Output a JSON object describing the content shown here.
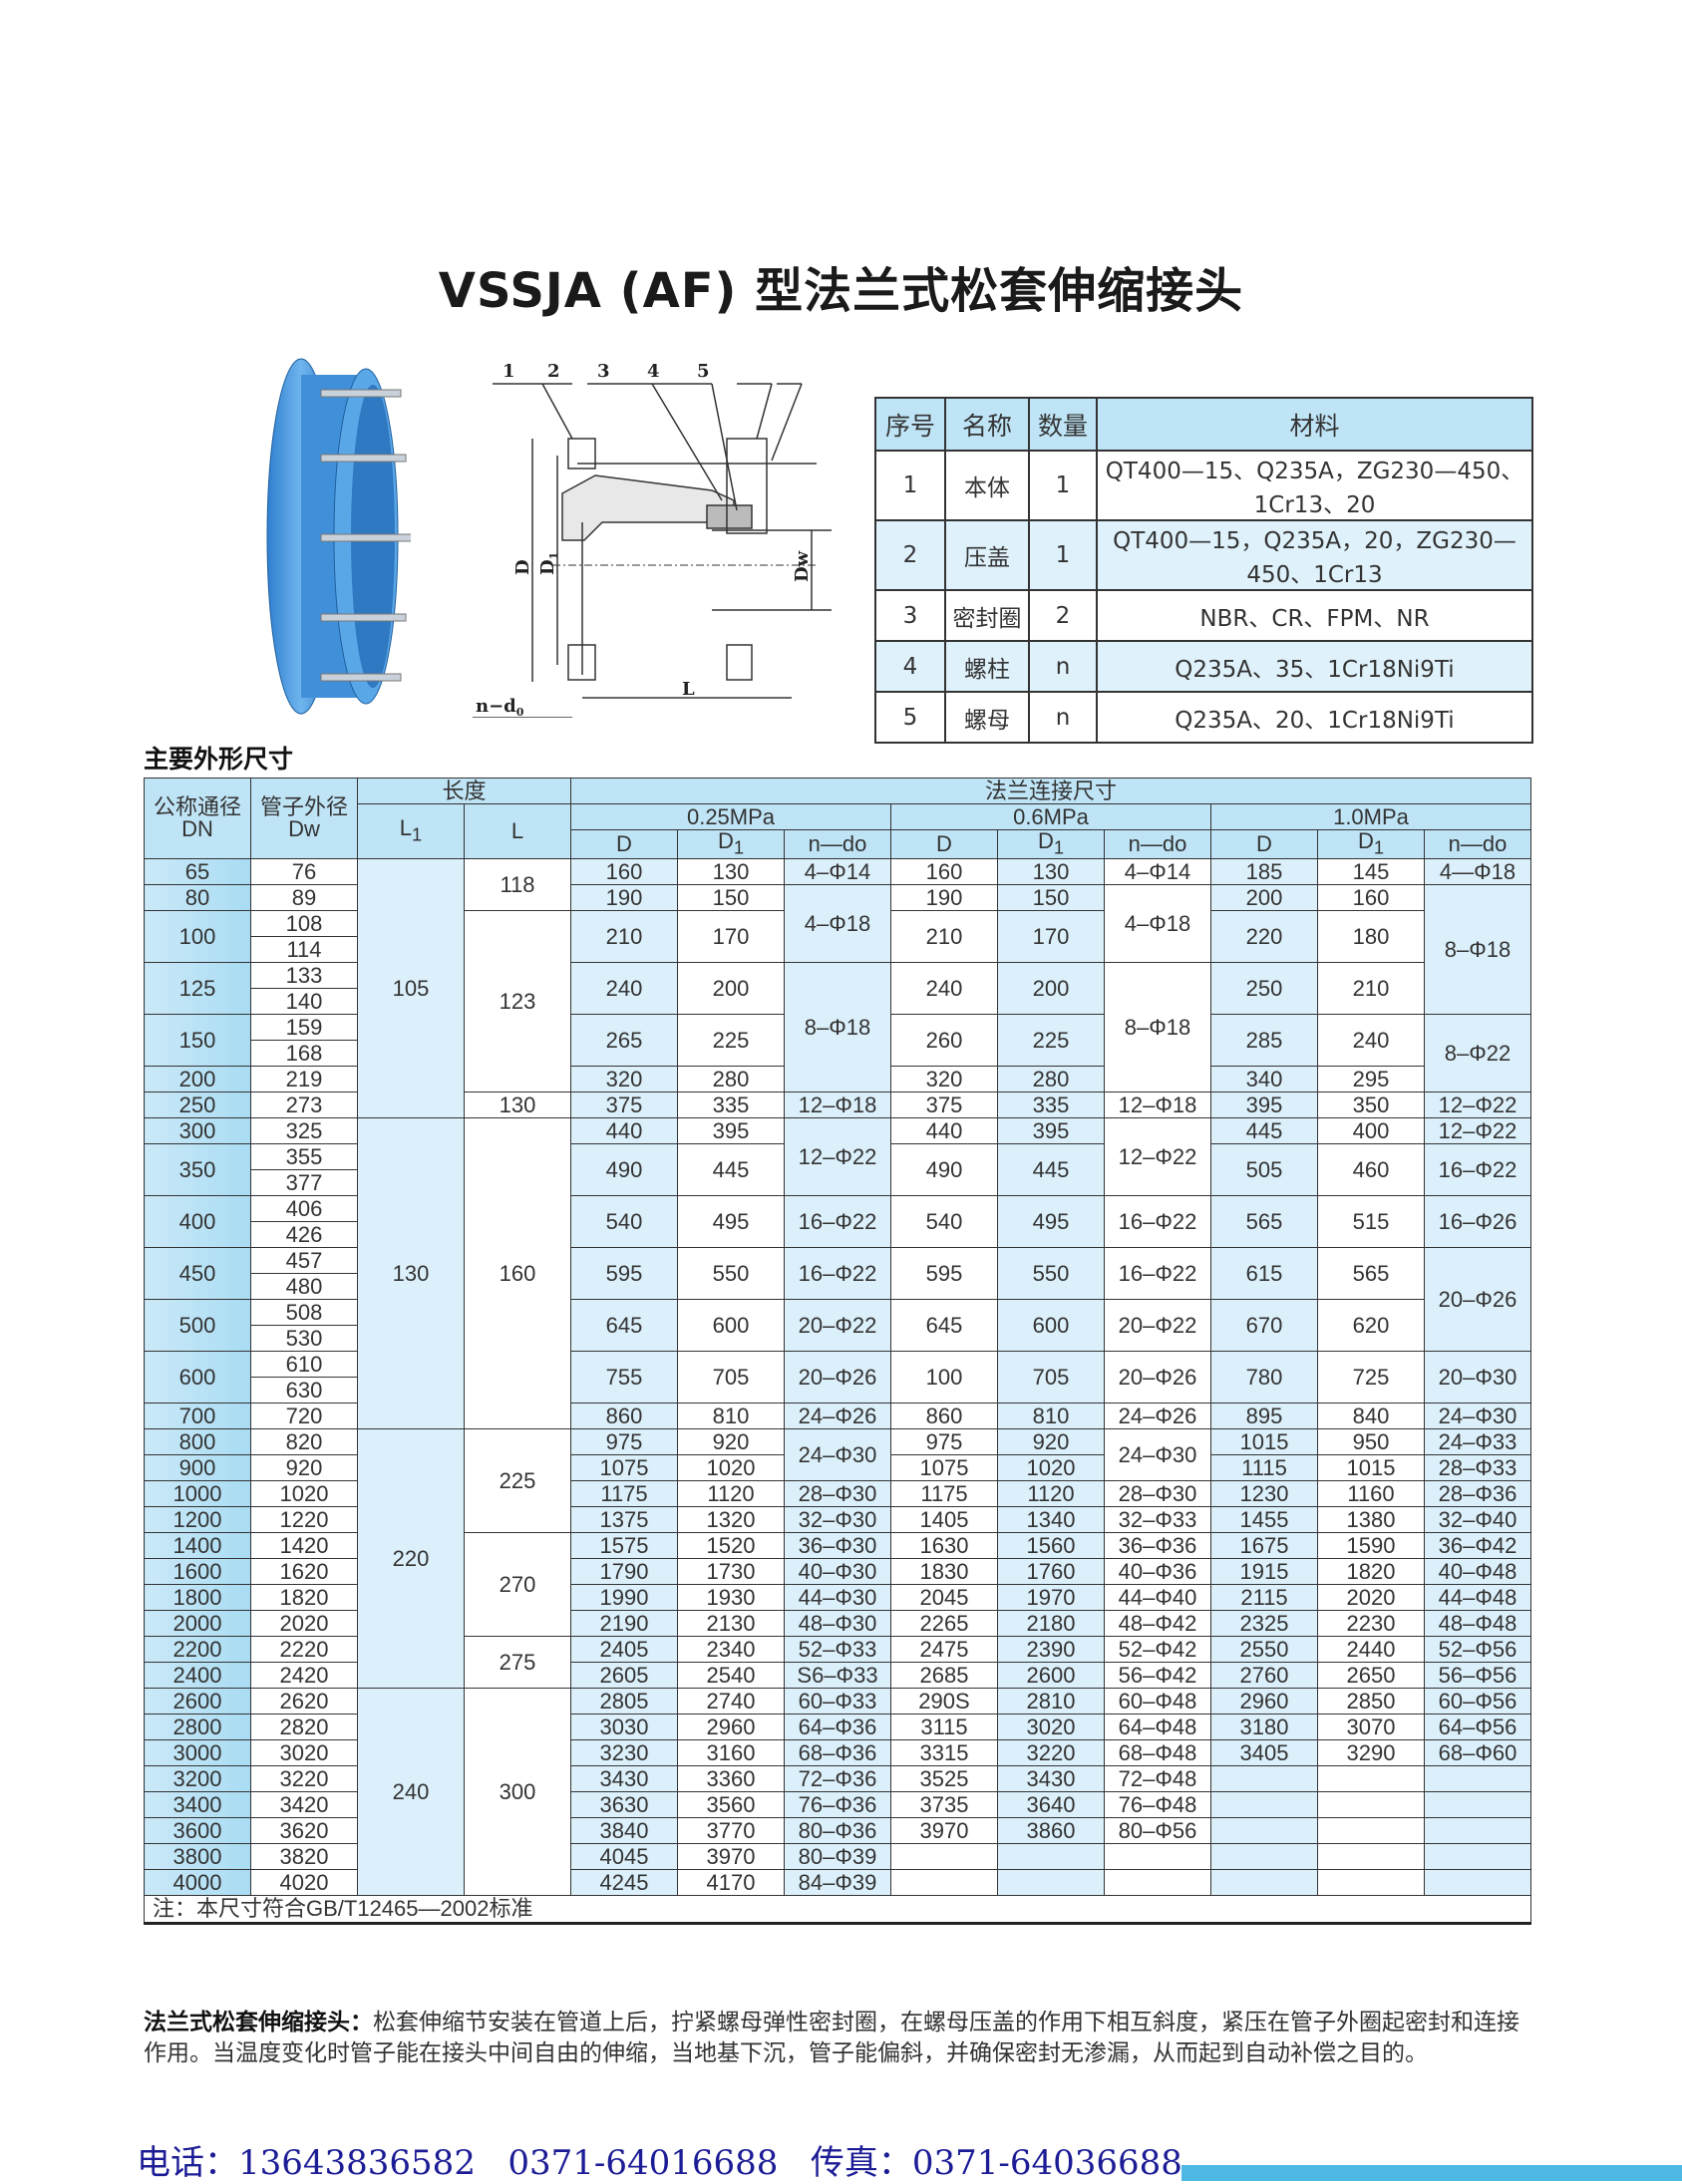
{
  "title": "VSSJA (AF) 型法兰式松套伸缩接头",
  "drawing": {
    "callouts": [
      "1",
      "2",
      "3",
      "4",
      "5"
    ],
    "labels": {
      "D": "D",
      "D1": "D",
      "D1_sub": "1",
      "Dw": "Dw",
      "L": "L",
      "nd0": "n−d",
      "nd0_sub": "0"
    }
  },
  "materials": {
    "headers": [
      "序号",
      "名称",
      "数量",
      "材料"
    ],
    "rows": [
      [
        "1",
        "本体",
        "1",
        "QT400—15、Q235A，ZG230—450、1Cr13、20"
      ],
      [
        "2",
        "压盖",
        "1",
        "QT400—15，Q235A，20，ZG230—450、1Cr13"
      ],
      [
        "3",
        "密封圈",
        "2",
        "NBR、CR、FPM、NR"
      ],
      [
        "4",
        "螺柱",
        "n",
        "Q235A、35、1Cr18Ni9Ti"
      ],
      [
        "5",
        "螺母",
        "n",
        "Q235A、20、1Cr18Ni9Ti"
      ]
    ]
  },
  "section_title": "主要外形尺寸",
  "dims": {
    "h_dn": "公称通径",
    "h_dn2": "DN",
    "h_dw": "管子外径",
    "h_dw2": "Dw",
    "h_len": "长度",
    "h_l1": "L",
    "h_l1_sub": "1",
    "h_l": "L",
    "h_flange": "法兰连接尺寸",
    "pressures": [
      "0.25MPa",
      "0.6MPa",
      "1.0MPa"
    ],
    "sub": [
      "D",
      "D1",
      "n—do"
    ],
    "rows": [
      [
        "65",
        "76",
        "105",
        "118",
        "160",
        "130",
        "4–Φ14",
        "160",
        "130",
        "4–Φ14",
        "185",
        "145",
        "4—Φ18"
      ],
      [
        "80",
        "89",
        null,
        null,
        "190",
        "150",
        "4–Φ18",
        "190",
        "150",
        "4–Φ18",
        "200",
        "160",
        "8–Φ18"
      ],
      [
        "100",
        "108",
        null,
        "123",
        "210",
        "170",
        null,
        "210",
        "170",
        null,
        "220",
        "180",
        null
      ],
      [
        null,
        "114",
        null,
        null,
        null,
        null,
        null,
        null,
        null,
        null,
        null,
        null,
        null
      ],
      [
        "125",
        "133",
        null,
        null,
        "240",
        "200",
        "8–Φ18",
        "240",
        "200",
        "8–Φ18",
        "250",
        "210",
        null
      ],
      [
        null,
        "140",
        null,
        null,
        null,
        null,
        null,
        null,
        null,
        null,
        null,
        null,
        null
      ],
      [
        "150",
        "159",
        null,
        null,
        "265",
        "225",
        null,
        "260",
        "225",
        null,
        "285",
        "240",
        "8–Φ22"
      ],
      [
        null,
        "168",
        null,
        null,
        null,
        null,
        null,
        null,
        null,
        null,
        null,
        null,
        null
      ],
      [
        "200",
        "219",
        null,
        null,
        "320",
        "280",
        null,
        "320",
        "280",
        null,
        "340",
        "295",
        null
      ],
      [
        "250",
        "273",
        null,
        "130",
        "375",
        "335",
        "12–Φ18",
        "375",
        "335",
        "12–Φ18",
        "395",
        "350",
        "12–Φ22"
      ],
      [
        "300",
        "325",
        "130",
        "160",
        "440",
        "395",
        "12–Φ22",
        "440",
        "395",
        "12–Φ22",
        "445",
        "400",
        "12–Φ22"
      ],
      [
        "350",
        "355",
        null,
        null,
        "490",
        "445",
        null,
        "490",
        "445",
        null,
        "505",
        "460",
        "16–Φ22"
      ],
      [
        null,
        "377",
        null,
        null,
        null,
        null,
        null,
        null,
        null,
        null,
        null,
        null,
        null
      ],
      [
        "400",
        "406",
        null,
        null,
        "540",
        "495",
        "16–Φ22",
        "540",
        "495",
        "16–Φ22",
        "565",
        "515",
        "16–Φ26"
      ],
      [
        null,
        "426",
        null,
        null,
        null,
        null,
        null,
        null,
        null,
        null,
        null,
        null,
        null
      ],
      [
        "450",
        "457",
        null,
        null,
        "595",
        "550",
        "16–Φ22",
        "595",
        "550",
        "16–Φ22",
        "615",
        "565",
        "20–Φ26"
      ],
      [
        null,
        "480",
        null,
        null,
        null,
        null,
        null,
        null,
        null,
        null,
        null,
        null,
        null
      ],
      [
        "500",
        "508",
        null,
        null,
        "645",
        "600",
        "20–Φ22",
        "645",
        "600",
        "20–Φ22",
        "670",
        "620",
        null
      ],
      [
        null,
        "530",
        null,
        null,
        null,
        null,
        null,
        null,
        null,
        null,
        null,
        null,
        null
      ],
      [
        "600",
        "610",
        null,
        null,
        "755",
        "705",
        "20–Φ26",
        "100",
        "705",
        "20–Φ26",
        "780",
        "725",
        "20–Φ30"
      ],
      [
        null,
        "630",
        null,
        null,
        null,
        null,
        null,
        null,
        null,
        null,
        null,
        null,
        null
      ],
      [
        "700",
        "720",
        null,
        null,
        "860",
        "810",
        "24–Φ26",
        "860",
        "810",
        "24–Φ26",
        "895",
        "840",
        "24–Φ30"
      ],
      [
        "800",
        "820",
        "220",
        "225",
        "975",
        "920",
        "24–Φ30",
        "975",
        "920",
        "24–Φ30",
        "1015",
        "950",
        "24–Φ33"
      ],
      [
        "900",
        "920",
        null,
        null,
        "1075",
        "1020",
        null,
        "1075",
        "1020",
        null,
        "1115",
        "1015",
        "28–Φ33"
      ],
      [
        "1000",
        "1020",
        null,
        null,
        "1175",
        "1120",
        "28–Φ30",
        "1175",
        "1120",
        "28–Φ30",
        "1230",
        "1160",
        "28–Φ36"
      ],
      [
        "1200",
        "1220",
        null,
        null,
        "1375",
        "1320",
        "32–Φ30",
        "1405",
        "1340",
        "32–Φ33",
        "1455",
        "1380",
        "32–Φ40"
      ],
      [
        "1400",
        "1420",
        null,
        "270",
        "1575",
        "1520",
        "36–Φ30",
        "1630",
        "1560",
        "36–Φ36",
        "1675",
        "1590",
        "36–Φ42"
      ],
      [
        "1600",
        "1620",
        null,
        null,
        "1790",
        "1730",
        "40–Φ30",
        "1830",
        "1760",
        "40–Φ36",
        "1915",
        "1820",
        "40–Φ48"
      ],
      [
        "1800",
        "1820",
        null,
        null,
        "1990",
        "1930",
        "44–Φ30",
        "2045",
        "1970",
        "44–Φ40",
        "2115",
        "2020",
        "44–Φ48"
      ],
      [
        "2000",
        "2020",
        null,
        null,
        "2190",
        "2130",
        "48–Φ30",
        "2265",
        "2180",
        "48–Φ42",
        "2325",
        "2230",
        "48–Φ48"
      ],
      [
        "2200",
        "2220",
        null,
        "275",
        "2405",
        "2340",
        "52–Φ33",
        "2475",
        "2390",
        "52–Φ42",
        "2550",
        "2440",
        "52–Φ56"
      ],
      [
        null,
        null,
        null,
        null,
        "2605",
        "2540",
        "S6–Φ33",
        "2685",
        "2600",
        "56–Φ42",
        "2760",
        "2650",
        "56–Φ56"
      ],
      [
        "2400",
        "2420",
        null,
        null,
        null,
        null,
        null,
        null,
        null,
        null,
        null,
        null,
        null
      ],
      [
        "2600",
        "2620",
        "240",
        "300",
        "2805",
        "2740",
        "60–Φ33",
        "290S",
        "2810",
        "60–Φ48",
        "2960",
        "2850",
        "60–Φ56"
      ],
      [
        "2800",
        "2820",
        null,
        null,
        "3030",
        "2960",
        "64–Φ36",
        "3115",
        "3020",
        "64–Φ48",
        "3180",
        "3070",
        "64–Φ56"
      ],
      [
        "3000",
        "3020",
        null,
        null,
        "3230",
        "3160",
        "68–Φ36",
        "3315",
        "3220",
        "68–Φ48",
        "3405",
        "3290",
        "68–Φ60"
      ],
      [
        "3200",
        "3220",
        null,
        null,
        "3430",
        "3360",
        "72–Φ36",
        "3525",
        "3430",
        "72–Φ48",
        "",
        "",
        ""
      ],
      [
        "3400",
        "3420",
        null,
        null,
        "3630",
        "3560",
        "76–Φ36",
        "3735",
        "3640",
        "76–Φ48",
        "",
        "",
        ""
      ],
      [
        "3600",
        "3620",
        null,
        null,
        "3840",
        "3770",
        "80–Φ36",
        "3970",
        "3860",
        "80–Φ56",
        "",
        "",
        ""
      ],
      [
        "3800",
        "3820",
        null,
        null,
        "4045",
        "3970",
        "80–Φ39",
        "",
        "",
        "",
        "",
        "",
        ""
      ],
      [
        "4000",
        "4020",
        null,
        null,
        "4245",
        "4170",
        "84–Φ39",
        "",
        "",
        "",
        "",
        "",
        ""
      ]
    ],
    "note": "注：本尺寸符合GB/T12465—2002标准"
  },
  "description": {
    "lead": "法兰式松套伸缩接头：",
    "body": "松套伸缩节安装在管道上后，拧紧螺母弹性密封圈，在螺母压盖的作用下相互斜度，紧压在管子外圈起密封和连接作用。当温度变化时管子能在接头中间自由的伸缩，当地基下沉，管子能偏斜，并确保密封无渗漏，从而起到自动补偿之目的。"
  },
  "footer": {
    "contact": "电话：13643836582   0371-64016688   传真：0371-64036688"
  },
  "colors": {
    "header_blue": "#bfe4f6",
    "cell_blue": "#dcf0fb",
    "product_blue": "#3c8fd6",
    "footer_text": "#1c1c96"
  }
}
